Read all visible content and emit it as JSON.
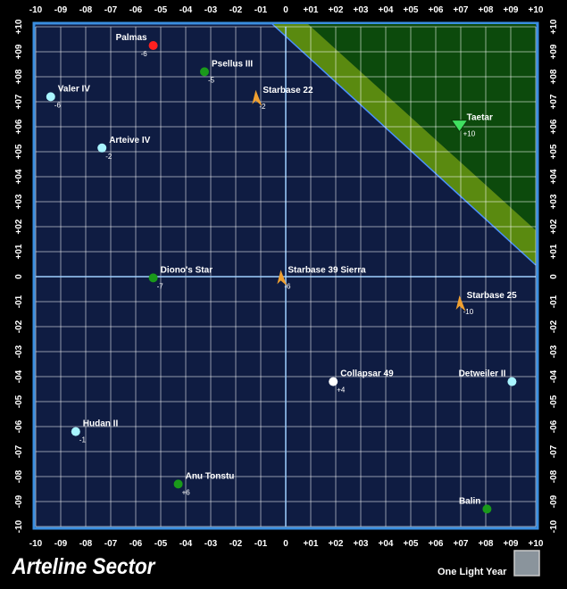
{
  "title": "Arteline Sector",
  "scale_label": "One Light Year",
  "axis_ticks": [
    {
      "value": -10,
      "label": "-10"
    },
    {
      "value": -9,
      "label": "-09"
    },
    {
      "value": -8,
      "label": "-08"
    },
    {
      "value": -7,
      "label": "-07"
    },
    {
      "value": -6,
      "label": "-06"
    },
    {
      "value": -5,
      "label": "-05"
    },
    {
      "value": -4,
      "label": "-04"
    },
    {
      "value": -3,
      "label": "-03"
    },
    {
      "value": -2,
      "label": "-02"
    },
    {
      "value": -1,
      "label": "-01"
    },
    0,
    {
      "value": 1,
      "label": "+01"
    },
    {
      "value": 2,
      "label": "+02"
    },
    {
      "value": 3,
      "label": "+03"
    },
    {
      "value": 4,
      "label": "+04"
    },
    {
      "value": 5,
      "label": "+05"
    },
    {
      "value": 6,
      "label": "+06"
    },
    {
      "value": 7,
      "label": "+07"
    },
    {
      "value": 8,
      "label": "+08"
    },
    {
      "value": 9,
      "label": "+09"
    },
    {
      "value": 10,
      "label": "+10"
    }
  ],
  "objects": [
    {
      "name": "Palmas",
      "label": "-6",
      "x": -5.3,
      "y": 9.25,
      "color": "#ff2020",
      "shape": "dot"
    },
    {
      "name": "Psellus III",
      "label": "-5",
      "x": -3.25,
      "y": 8.2,
      "color": "#1a9a1a",
      "shape": "dot"
    },
    {
      "name": "Starbase 22",
      "label": "-2",
      "x": -1.2,
      "y": 7.15,
      "color": "#f0a030",
      "shape": "starbase"
    },
    {
      "name": "Valer IV",
      "label": "-6",
      "x": -9.4,
      "y": 7.2,
      "color": "#a8f4ff",
      "shape": "dot"
    },
    {
      "name": "Arteive IV",
      "label": "-2",
      "x": -7.35,
      "y": 5.15,
      "color": "#a8f4ff",
      "shape": "dot"
    },
    {
      "name": "Taetar",
      "label": "+10",
      "x": 6.95,
      "y": 6.05,
      "color": "#40e060",
      "shape": "emblem"
    },
    {
      "name": "Diono's Star",
      "label": "-7",
      "x": -5.3,
      "y": -0.05,
      "color": "#1a9a1a",
      "shape": "dot"
    },
    {
      "name": "Starbase 39 Sierra",
      "label": "-6",
      "x": -0.2,
      "y": -0.05,
      "color": "#f0a030",
      "shape": "starbase"
    },
    {
      "name": "Starbase 25",
      "label": "-10",
      "x": 6.95,
      "y": -1.07,
      "color": "#f0a030",
      "shape": "starbase"
    },
    {
      "name": "Collapsar 49",
      "label": "+4",
      "x": 1.9,
      "y": -4.2,
      "color": "#ffffff",
      "shape": "dot"
    },
    {
      "name": "Detweiler II",
      "x": 9.05,
      "y": -4.2,
      "color": "#a8f4ff",
      "shape": "dot"
    },
    {
      "name": "Hudan II",
      "label": "-1",
      "x": -8.4,
      "y": -6.2,
      "color": "#a8f4ff",
      "shape": "dot"
    },
    {
      "name": "Anu Tonstu",
      "label": "+6",
      "x": -4.3,
      "y": -8.3,
      "color": "#1a9a1a",
      "shape": "dot"
    },
    {
      "name": "Balin",
      "x": 8.05,
      "y": -9.3,
      "color": "#1a9a1a",
      "shape": "dot"
    }
  ]
}
